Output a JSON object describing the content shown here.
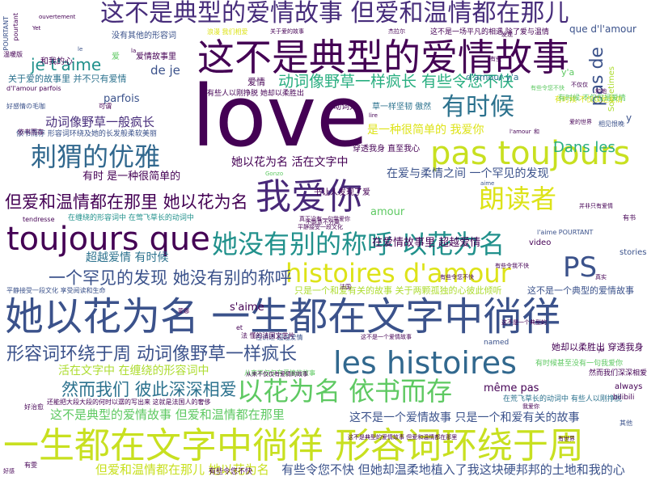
{
  "cloud": {
    "colors": {
      "dark_purple": "#440154",
      "indigo": "#472d7b",
      "blue": "#3b528b",
      "slate_blue": "#31688e",
      "teal": "#21918c",
      "green_teal": "#28ae80",
      "green": "#5ec962",
      "yellow_green": "#addc30",
      "yellow": "#dde318"
    },
    "words": [
      {
        "text": "love",
        "color": "#440154"
      },
      {
        "text": "这不是典型的爱情故事 但爱和温情都在那儿",
        "color": "#472d7b"
      },
      {
        "text": "这不是典型的爱情故事",
        "color": "#440154"
      },
      {
        "text": "她以花为名 一生都在文字中徜徉",
        "color": "#3b528b"
      },
      {
        "text": "一生都在文字中徜徉 形容词环绕于周",
        "color": "#c8e020"
      },
      {
        "text": "我爱你",
        "color": "#482878"
      },
      {
        "text": "pas toujours",
        "color": "#c8e020"
      },
      {
        "text": "toujours que",
        "color": "#440154"
      },
      {
        "text": "她没有别的称呼 以花为名",
        "color": "#21918c"
      },
      {
        "text": "histoires d'amour",
        "color": "#dde318"
      },
      {
        "text": "les histoires",
        "color": "#31688e"
      },
      {
        "text": "以花为名 依书而存",
        "color": "#5ec962"
      },
      {
        "text": "刺猬的优雅",
        "color": "#31688e"
      },
      {
        "text": "朗读者",
        "color": "#dde318"
      },
      {
        "text": "有时候",
        "color": "#2c728e"
      },
      {
        "text": "PS",
        "color": "#3b528b"
      },
      {
        "text": "形容词环绕于周 动词像野草一样疯长",
        "color": "#3b528b"
      },
      {
        "text": "但爱和温情都在那里 她以花为名",
        "color": "#440154"
      },
      {
        "text": "一个罕见的发现 她没有别的称呼",
        "color": "#3b528b"
      },
      {
        "text": "然而我们 彼此深深相爱",
        "color": "#2c728e"
      },
      {
        "text": "动词像野草一样疯长 有些令您不快",
        "color": "#28ae80"
      },
      {
        "text": "je t'aime",
        "color": "#21918c"
      },
      {
        "text": "这不是典型的爱情故事 但爱和温情都在那里",
        "color": "#5ec962"
      },
      {
        "text": "这不是一个爱情故事 只是一个和爱有关的故事",
        "color": "#3b528b"
      },
      {
        "text": "但爱和温情都在那儿 她以花为名",
        "color": "#c8e020"
      },
      {
        "text": "有些令您不快 但她却温柔地植入了我这块硬邦邦的土地和我的心",
        "color": "#3b528b"
      },
      {
        "text": "她以花为名 活在文字中",
        "color": "#440154"
      },
      {
        "text": "在爱与柔情之间 一个罕见的发现",
        "color": "#3b528b"
      },
      {
        "text": "是一种很简单的 我爱你",
        "color": "#dde318"
      },
      {
        "text": "动词像野草一般疯长",
        "color": "#472d7b"
      },
      {
        "text": "超越爱情 有时候",
        "color": "#2c728e"
      },
      {
        "text": "活在文字中 在缠绕的形容词中",
        "color": "#addc30"
      },
      {
        "text": "Dans les",
        "color": "#28ae80"
      },
      {
        "text": "pas de",
        "color": "#3b528b"
      },
      {
        "text": "même pas",
        "color": "#440154"
      },
      {
        "text": "有时 是一种很简单的",
        "color": "#440154"
      },
      {
        "text": "在爱情故事里 超越爱情",
        "color": "#440154"
      },
      {
        "text": "s'aime",
        "color": "#440154"
      },
      {
        "text": "de je",
        "color": "#3b528b"
      },
      {
        "text": "parfois",
        "color": "#3b528b"
      },
      {
        "text": "amour",
        "color": "#5ec962"
      },
      {
        "text": "关于爱的故事里 并不只有爱情",
        "color": "#2c728e"
      },
      {
        "text": "没有其他的形容词",
        "color": "#3b528b"
      },
      {
        "text": "爱情故事里",
        "color": "#440154"
      },
      {
        "text": "和我的心",
        "color": "#440154"
      },
      {
        "text": "爱情",
        "color": "#440154"
      },
      {
        "text": "穿透我身 直至我心",
        "color": "#440154"
      },
      {
        "text": "书让人发现了爱",
        "color": "#440154"
      },
      {
        "text": "草一样坚韧 傲然",
        "color": "#2c728e"
      },
      {
        "text": "动词如",
        "color": "#440154"
      },
      {
        "text": "只是一个和爱有关的故事 关于两颗孤独的心彼此倾听",
        "color": "#addc30"
      },
      {
        "text": "这不是一个典型的爱情故事",
        "color": "#3b528b"
      },
      {
        "text": "她却以柔胜出 穿透我身",
        "color": "#440154"
      },
      {
        "text": "有时候甚至没有一句我爱你",
        "color": "#5ec962"
      },
      {
        "text": "在荒飞草长的动词中 有些人以刚挣脱",
        "color": "#2c728e"
      },
      {
        "text": "然而我们深深相爱",
        "color": "#440154"
      },
      {
        "text": "always",
        "color": "#440154"
      },
      {
        "text": "video",
        "color": "#440154"
      },
      {
        "text": "stories",
        "color": "#3b528b"
      },
      {
        "text": "bilibili",
        "color": "#440154"
      },
      {
        "text": "named",
        "color": "#3b528b"
      },
      {
        "text": "Sometimes",
        "color": "#addc30"
      },
      {
        "text": "que d'l'amour",
        "color": "#3b528b"
      },
      {
        "text": "y'a",
        "color": "#5ec962"
      },
      {
        "text": "d'amour y'a",
        "color": "#2c728e"
      },
      {
        "text": "y",
        "color": "#3b528b"
      },
      {
        "text": "有时候 不仅仅是爱情",
        "color": "#dde318"
      },
      {
        "text": "这不是一场平凡的相遇 除了爱与温情",
        "color": "#440154"
      },
      {
        "text": "有些人以刚挣脱 她却以柔胜出",
        "color": "#440154"
      },
      {
        "text": "依书而存 形容词环绕及她的长发般柔软美丽",
        "color": "#3b528b"
      },
      {
        "text": "在缠绕的形容词中 在莺飞草长的动词中",
        "color": "#21918c"
      },
      {
        "text": "平静接受一段文化 享受阅读和生命",
        "color": "#3b528b"
      },
      {
        "text": "在讲述 超越爱情",
        "color": "#3b528b"
      },
      {
        "text": "从来不仅仅有爱情的故事",
        "color": "#5ec962"
      },
      {
        "text": "不能意不分离",
        "color": "#440154"
      },
      {
        "text": "真正没有一句我爱你",
        "color": "#440154"
      },
      {
        "text": "平静接受一段文化",
        "color": "#440154"
      },
      {
        "text": "l'aime POURTANT",
        "color": "#3b528b"
      },
      {
        "text": "tendresse",
        "color": "#440154"
      },
      {
        "text": "好感情の毛咖",
        "color": "#3b528b"
      },
      {
        "text": "d'l'amour parfois",
        "color": "#440154"
      },
      {
        "text": "爱",
        "color": "#5ec962"
      },
      {
        "text": "有时候 不仅仅是爱情",
        "color": "#5ec962"
      },
      {
        "text": "有些令您不快",
        "color": "#440154"
      },
      {
        "text": "POURTANT",
        "color": "#3b528b"
      },
      {
        "text": "温暖版",
        "color": "#440154"
      },
      {
        "text": "其他",
        "color": "#3b528b"
      },
      {
        "text": "可谓",
        "color": "#440154"
      },
      {
        "text": "依书而存",
        "color": "#440154"
      },
      {
        "text": "好治愈",
        "color": "#440154"
      },
      {
        "text": "有雯",
        "color": "#440154"
      },
      {
        "text": "还能把大段大段的何时以潺的写出来 这就是法国人的奢侈",
        "color": "#440154"
      },
      {
        "text": "这不是典型的爱情故事 但爱和温情都在那里",
        "color": "#440154"
      },
      {
        "text": "这不是一个爱情故事",
        "color": "#440154"
      },
      {
        "text": "ouvertement",
        "color": "#440154"
      },
      {
        "text": "Yet",
        "color": "#440154"
      },
      {
        "text": "Gonzo",
        "color": "#5ec962"
      },
      {
        "text": "aime",
        "color": "#3b528b"
      },
      {
        "text": "la",
        "color": "#440154"
      },
      {
        "text": "le",
        "color": "#3b528b"
      },
      {
        "text": "et",
        "color": "#440154"
      },
      {
        "text": "和",
        "color": "#440154"
      },
      {
        "text": "je",
        "color": "#440154"
      },
      {
        "text": "lire",
        "color": "#440154"
      },
      {
        "text": "l'amour",
        "color": "#440154"
      },
      {
        "text": "好感",
        "color": "#440154"
      },
      {
        "text": "有书",
        "color": "#440154"
      },
      {
        "text": "相见恨晚",
        "color": "#3b528b"
      },
      {
        "text": "法 懂的法国文艺片",
        "color": "#440154"
      },
      {
        "text": "浪漫 我们相爱",
        "color": "#dde318"
      },
      {
        "text": "关于爱的故事",
        "color": "#440154"
      },
      {
        "text": "杰拉尔",
        "color": "#440154"
      },
      {
        "text": "有些令您不快",
        "color": "#5ec962"
      },
      {
        "text": "这不是一个典型的",
        "color": "#440154"
      },
      {
        "text": "从来不仅仅有爱情的故事",
        "color": "#440154"
      },
      {
        "text": "并非只有爱情",
        "color": "#440154"
      },
      {
        "text": "有些令您不快",
        "color": "#440154"
      },
      {
        "text": "和她",
        "color": "#440154"
      },
      {
        "text": "蒙娜",
        "color": "#440154"
      },
      {
        "text": "爱的世界",
        "color": "#440154"
      },
      {
        "text": "不仅仅",
        "color": "#440154"
      },
      {
        "text": "有些令我不快",
        "color": "#440154"
      },
      {
        "text": "有世界",
        "color": "#440154"
      },
      {
        "text": "法国",
        "color": "#440154"
      },
      {
        "text": "我爱你",
        "color": "#440154"
      },
      {
        "text": "发现",
        "color": "#440154"
      },
      {
        "text": "真实",
        "color": "#440154"
      },
      {
        "text": "有些",
        "color": "#440154"
      },
      {
        "text": "pourtant",
        "color": "#440154"
      }
    ]
  }
}
